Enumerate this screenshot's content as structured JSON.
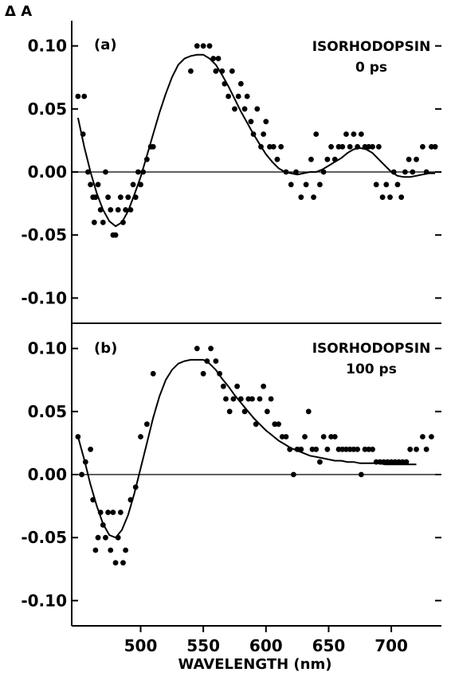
{
  "chart_data": [
    {
      "type": "scatter",
      "panel_label": "(a)",
      "title": "ISORHODOPSIN",
      "subtitle": "0 ps",
      "ylabel": "Δ A",
      "xlabel": "",
      "xlim": [
        445,
        740
      ],
      "ylim": [
        -0.12,
        0.12
      ],
      "yticks": [
        "0.10",
        "0.05",
        "0.00",
        "-0.05",
        "-0.10"
      ],
      "ytick_values": [
        0.1,
        0.05,
        0.0,
        -0.05,
        -0.1
      ],
      "zero_line": true,
      "series": [
        {
          "kind": "points",
          "x": [
            450,
            454,
            455,
            458,
            460,
            462,
            463,
            464,
            466,
            468,
            470,
            472,
            474,
            476,
            478,
            480,
            482,
            484,
            486,
            488,
            490,
            492,
            494,
            496,
            498,
            500,
            502,
            505,
            508,
            510,
            540,
            545,
            550,
            555,
            558,
            560,
            562,
            565,
            567,
            570,
            573,
            575,
            578,
            580,
            583,
            585,
            588,
            590,
            593,
            596,
            598,
            600,
            603,
            606,
            609,
            612,
            616,
            620,
            624,
            628,
            632,
            636,
            638,
            640,
            643,
            646,
            649,
            652,
            655,
            658,
            661,
            664,
            667,
            670,
            673,
            676,
            679,
            682,
            685,
            688,
            690,
            693,
            696,
            699,
            702,
            705,
            708,
            711,
            714,
            717,
            720,
            725,
            728,
            732,
            735
          ],
          "y": [
            0.06,
            0.03,
            0.06,
            0.0,
            -0.01,
            -0.02,
            -0.04,
            -0.02,
            -0.01,
            -0.03,
            -0.04,
            0.0,
            -0.02,
            -0.03,
            -0.05,
            -0.05,
            -0.03,
            -0.02,
            -0.04,
            -0.03,
            -0.02,
            -0.03,
            -0.01,
            -0.02,
            0.0,
            -0.01,
            0.0,
            0.01,
            0.02,
            0.02,
            0.08,
            0.1,
            0.1,
            0.1,
            0.09,
            0.08,
            0.09,
            0.08,
            0.07,
            0.06,
            0.08,
            0.05,
            0.06,
            0.07,
            0.05,
            0.06,
            0.04,
            0.03,
            0.05,
            0.02,
            0.03,
            0.04,
            0.02,
            0.02,
            0.01,
            0.02,
            0.0,
            -0.01,
            0.0,
            -0.02,
            -0.01,
            0.01,
            -0.02,
            0.03,
            -0.01,
            0.0,
            0.01,
            0.02,
            0.01,
            0.02,
            0.02,
            0.03,
            0.02,
            0.03,
            0.02,
            0.03,
            0.02,
            0.02,
            0.02,
            -0.01,
            0.02,
            -0.02,
            -0.01,
            -0.02,
            0.0,
            -0.01,
            -0.02,
            0.0,
            0.01,
            0.0,
            0.01,
            0.02,
            0.0,
            0.02,
            0.02
          ]
        },
        {
          "kind": "curve",
          "x": [
            450,
            455,
            460,
            465,
            470,
            475,
            480,
            485,
            490,
            495,
            500,
            505,
            510,
            515,
            520,
            525,
            530,
            535,
            540,
            545,
            550,
            555,
            560,
            565,
            570,
            575,
            580,
            585,
            590,
            595,
            600,
            605,
            610,
            615,
            620,
            625,
            630,
            635,
            640,
            645,
            650,
            655,
            660,
            665,
            670,
            675,
            680,
            685,
            690,
            695,
            700,
            705,
            710,
            715,
            720,
            725,
            730,
            735
          ],
          "y": [
            0.043,
            0.02,
            0.0,
            -0.017,
            -0.03,
            -0.039,
            -0.043,
            -0.04,
            -0.031,
            -0.018,
            -0.004,
            0.013,
            0.03,
            0.047,
            0.062,
            0.075,
            0.085,
            0.09,
            0.092,
            0.093,
            0.093,
            0.09,
            0.085,
            0.077,
            0.068,
            0.058,
            0.048,
            0.039,
            0.03,
            0.022,
            0.014,
            0.008,
            0.003,
            0.0,
            -0.001,
            -0.002,
            -0.001,
            0.0,
            0.0,
            0.002,
            0.005,
            0.008,
            0.011,
            0.015,
            0.018,
            0.019,
            0.018,
            0.015,
            0.01,
            0.005,
            0.0,
            -0.003,
            -0.004,
            -0.004,
            -0.003,
            -0.002,
            -0.001,
            -0.001
          ]
        }
      ]
    },
    {
      "type": "scatter",
      "panel_label": "(b)",
      "title": "ISORHODOPSIN",
      "subtitle": "100 ps",
      "ylabel": "",
      "xlabel": "WAVELENGTH (nm)",
      "xlim": [
        445,
        740
      ],
      "ylim": [
        -0.12,
        0.12
      ],
      "xticks": [
        "500",
        "550",
        "600",
        "650",
        "700"
      ],
      "xtick_values": [
        500,
        550,
        600,
        650,
        700
      ],
      "yticks": [
        "0.10",
        "0.05",
        "0.00",
        "-0.05",
        "-0.10"
      ],
      "ytick_values": [
        0.1,
        0.05,
        0.0,
        -0.05,
        -0.1
      ],
      "zero_line": true,
      "series": [
        {
          "kind": "points",
          "x": [
            450,
            453,
            456,
            460,
            462,
            464,
            466,
            468,
            470,
            472,
            474,
            476,
            478,
            480,
            482,
            484,
            486,
            488,
            492,
            496,
            500,
            505,
            510,
            545,
            550,
            553,
            556,
            560,
            563,
            566,
            568,
            571,
            574,
            577,
            580,
            583,
            586,
            589,
            592,
            595,
            598,
            601,
            604,
            607,
            610,
            613,
            616,
            619,
            622,
            625,
            628,
            631,
            634,
            637,
            640,
            643,
            646,
            649,
            652,
            655,
            658,
            661,
            664,
            667,
            670,
            673,
            676,
            679,
            682,
            685,
            688,
            691,
            694,
            697,
            700,
            703,
            706,
            709,
            712,
            715,
            720,
            725,
            728,
            732
          ],
          "y": [
            0.03,
            0.0,
            0.01,
            0.02,
            -0.02,
            -0.06,
            -0.05,
            -0.03,
            -0.04,
            -0.05,
            -0.03,
            -0.06,
            -0.03,
            -0.07,
            -0.05,
            -0.03,
            -0.07,
            -0.06,
            -0.02,
            -0.01,
            0.03,
            0.04,
            0.08,
            0.1,
            0.08,
            0.09,
            0.1,
            0.09,
            0.08,
            0.07,
            0.06,
            0.05,
            0.06,
            0.07,
            0.06,
            0.05,
            0.06,
            0.06,
            0.04,
            0.06,
            0.07,
            0.05,
            0.06,
            0.04,
            0.04,
            0.03,
            0.03,
            0.02,
            0.0,
            0.02,
            0.02,
            0.03,
            0.05,
            0.02,
            0.02,
            0.01,
            0.03,
            0.02,
            0.03,
            0.03,
            0.02,
            0.02,
            0.02,
            0.02,
            0.02,
            0.02,
            0.0,
            0.02,
            0.02,
            0.02,
            0.01,
            0.01,
            0.01,
            0.01,
            0.01,
            0.01,
            0.01,
            0.01,
            0.01,
            0.02,
            0.02,
            0.03,
            0.02,
            0.03
          ]
        },
        {
          "kind": "curve",
          "x": [
            450,
            455,
            460,
            465,
            470,
            475,
            480,
            485,
            490,
            495,
            500,
            505,
            510,
            515,
            520,
            525,
            530,
            535,
            540,
            545,
            550,
            555,
            560,
            565,
            570,
            575,
            580,
            585,
            590,
            595,
            600,
            605,
            610,
            615,
            620,
            625,
            630,
            635,
            640,
            645,
            650,
            655,
            660,
            665,
            670,
            675,
            680,
            685,
            690,
            695,
            700,
            705,
            710,
            715,
            720
          ],
          "y": [
            0.03,
            0.012,
            -0.008,
            -0.025,
            -0.039,
            -0.048,
            -0.05,
            -0.044,
            -0.032,
            -0.015,
            0.005,
            0.025,
            0.045,
            0.062,
            0.075,
            0.083,
            0.088,
            0.09,
            0.091,
            0.091,
            0.091,
            0.088,
            0.083,
            0.076,
            0.07,
            0.063,
            0.057,
            0.051,
            0.045,
            0.04,
            0.035,
            0.031,
            0.027,
            0.024,
            0.021,
            0.019,
            0.017,
            0.015,
            0.014,
            0.013,
            0.012,
            0.011,
            0.011,
            0.01,
            0.01,
            0.009,
            0.009,
            0.009,
            0.009,
            0.008,
            0.008,
            0.008,
            0.008,
            0.008,
            0.008
          ]
        }
      ]
    }
  ]
}
